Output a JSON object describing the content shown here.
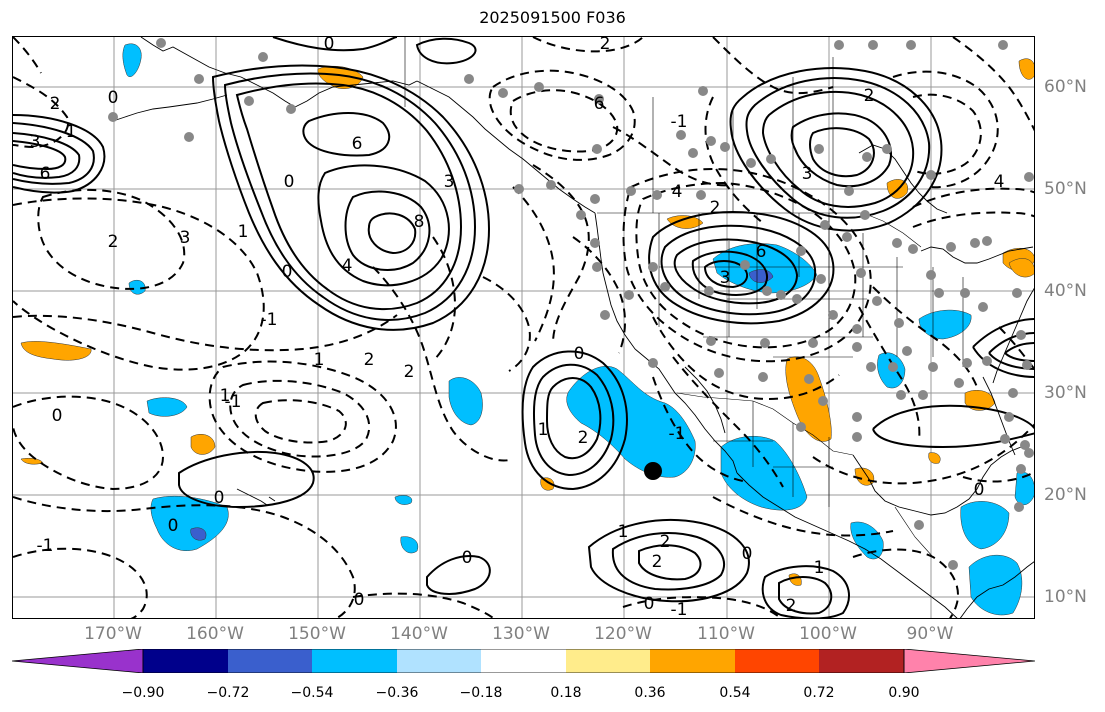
{
  "title": "2025091500 F036",
  "chart_data": {
    "type": "map",
    "title": "2025091500 F036",
    "projection": "plate-carree",
    "lon_range": [
      -180,
      -80
    ],
    "lat_range": [
      8,
      65
    ],
    "longitude_labels": [
      "170°W",
      "160°W",
      "150°W",
      "140°W",
      "130°W",
      "120°W",
      "110°W",
      "100°W",
      "90°W"
    ],
    "latitude_labels": [
      "60°N",
      "50°N",
      "40°N",
      "30°N",
      "20°N",
      "10°N"
    ],
    "colorbar": {
      "ticks": [
        "−0.90",
        "−0.72",
        "−0.54",
        "−0.36",
        "−0.18",
        "0.18",
        "0.36",
        "0.54",
        "0.72",
        "0.90"
      ],
      "colors": [
        "#9932cc",
        "#00008b",
        "#3a5fcd",
        "#00bfff",
        "#b0e2ff",
        "#ffffff",
        "#ffec8b",
        "#ffa500",
        "#ff4500",
        "#b22222",
        "#ff82ab"
      ],
      "extend": "both"
    },
    "contour_labels": [
      "0",
      "2",
      "3",
      "6",
      "1",
      "6",
      "8",
      "4",
      "3",
      "0",
      "-1",
      "1",
      "2",
      "2",
      "-1",
      "0",
      "0",
      "0",
      "-1",
      "1",
      "0",
      "3",
      "2",
      "6",
      "0",
      "2",
      "-1",
      "4",
      "2",
      "3",
      "6",
      "2",
      "3",
      "0",
      "2",
      "1",
      "4",
      "0",
      "-1",
      "2",
      "1",
      "0",
      "1",
      "2",
      "0",
      "0",
      "-1",
      "0",
      "1",
      "2"
    ]
  }
}
